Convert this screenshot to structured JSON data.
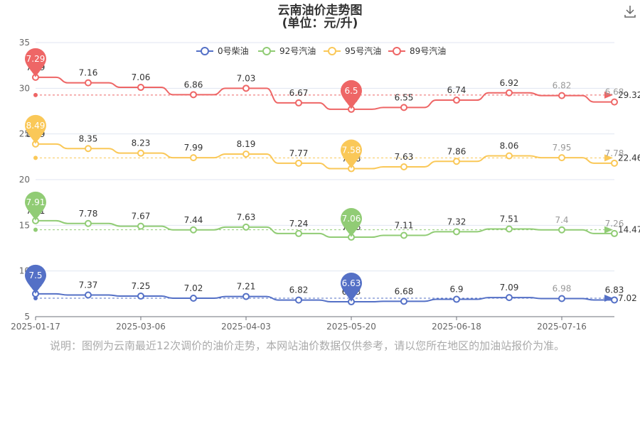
{
  "title_line1": "云南油价走势图",
  "title_line2": "(单位：元/升)",
  "note": "说明：图例为云南最近12次调价的油价走势，本网站油价数据仅供参考，请以您所在地区的加油站报价为准。",
  "download_icon": "download-icon",
  "chart_data": {
    "type": "line",
    "step_style": "smooth step",
    "x_tick_labels": [
      "2025-01-17",
      "2025-03-06",
      "2025-04-03",
      "2025-05-20",
      "2025-06-18",
      "2025-07-16"
    ],
    "y_ticks": [
      5,
      10,
      15,
      20,
      25,
      30,
      35
    ],
    "ylim": [
      5,
      35
    ],
    "grid": true,
    "legend_position": "top",
    "series": [
      {
        "name": "0号柴油",
        "color": "#5470c6",
        "display": [
          7.5,
          7.37,
          7.25,
          7.02,
          7.21,
          6.82,
          6.63,
          6.68,
          6.9,
          7.09,
          6.98,
          6.83
        ],
        "labels": [
          "7.5",
          "7.37",
          "7.25",
          "7.02",
          "7.21",
          "6.82",
          "6.63",
          "6.68",
          "6.9",
          "7.09",
          "6.98",
          "6.83"
        ],
        "max_pin": "7.5",
        "min_pin": "6.63",
        "average": "7.02"
      },
      {
        "name": "92号汽油",
        "color": "#91cc75",
        "display": [
          15.5,
          15.2,
          14.9,
          14.5,
          14.8,
          14.1,
          13.7,
          13.9,
          14.3,
          14.6,
          14.5,
          14.1
        ],
        "labels": [
          "7.91",
          "7.78",
          "7.67",
          "7.44",
          "7.63",
          "7.24",
          "7.06",
          "7.11",
          "7.32",
          "7.51",
          "7.4",
          "7.26"
        ],
        "max_pin": "7.91",
        "min_pin": "7.06",
        "average": "14.47"
      },
      {
        "name": "95号汽油",
        "color": "#fac858",
        "display": [
          23.9,
          23.4,
          22.9,
          22.4,
          22.8,
          21.8,
          21.2,
          21.4,
          22.0,
          22.6,
          22.4,
          21.8
        ],
        "labels": [
          "8.49",
          "8.35",
          "8.23",
          "7.99",
          "8.19",
          "7.77",
          "7.58",
          "7.63",
          "7.86",
          "8.06",
          "7.95",
          "7.78"
        ],
        "max_pin": "8.49",
        "min_pin": "7.58",
        "average": "22.46"
      },
      {
        "name": "89号汽油",
        "color": "#ee6666",
        "display": [
          31.2,
          30.6,
          30.1,
          29.3,
          30.0,
          28.4,
          27.7,
          27.9,
          28.7,
          29.5,
          29.2,
          28.5
        ],
        "labels": [
          "7.29",
          "7.16",
          "7.06",
          "6.86",
          "7.03",
          "6.67",
          "6.5",
          "6.55",
          "6.74",
          "6.92",
          "6.82",
          "6.68"
        ],
        "max_pin": "7.29",
        "min_pin": "6.5",
        "average": "29.32"
      }
    ]
  }
}
